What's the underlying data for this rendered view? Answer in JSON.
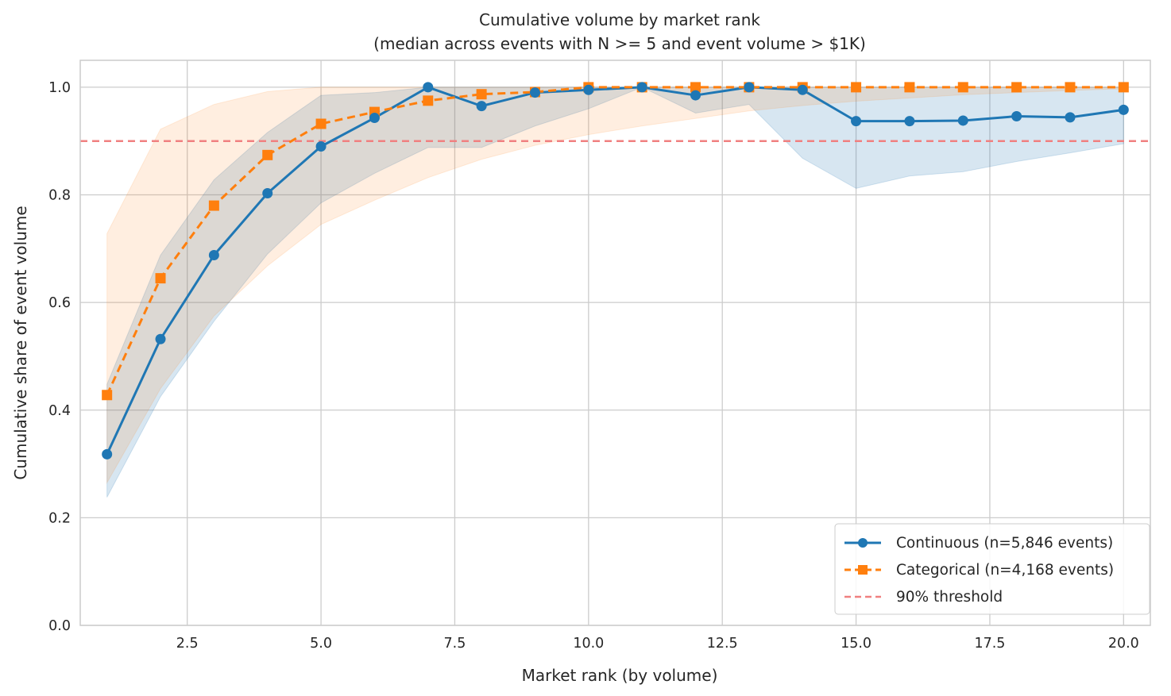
{
  "chart_data": {
    "type": "line",
    "title": "Cumulative volume by market rank",
    "subtitle": "(median across events with N >= 5 and event volume > $1K)",
    "xlabel": "Market rank (by volume)",
    "ylabel": "Cumulative share of event volume",
    "xlim": [
      0.5,
      20.5
    ],
    "ylim": [
      0.0,
      1.05
    ],
    "xticks": [
      2.5,
      5.0,
      7.5,
      10.0,
      12.5,
      15.0,
      17.5,
      20.0
    ],
    "xtick_labels": [
      "2.5",
      "5.0",
      "7.5",
      "10.0",
      "12.5",
      "15.0",
      "17.5",
      "20.0"
    ],
    "yticks": [
      0.0,
      0.2,
      0.4,
      0.6,
      0.8,
      1.0
    ],
    "ytick_labels": [
      "0.0",
      "0.2",
      "0.4",
      "0.6",
      "0.8",
      "1.0"
    ],
    "grid": true,
    "legend_position": "lower-right",
    "x": [
      1,
      2,
      3,
      4,
      5,
      6,
      7,
      8,
      9,
      10,
      11,
      12,
      13,
      14,
      15,
      16,
      17,
      18,
      19,
      20
    ],
    "series": [
      {
        "name": "Continuous",
        "legend_label": "Continuous (n=5,846 events)",
        "color": "#1f77b4",
        "marker": "circle",
        "linestyle": "solid",
        "values": [
          0.318,
          0.532,
          0.688,
          0.803,
          0.89,
          0.943,
          1.0,
          0.965,
          0.99,
          0.995,
          1.0,
          0.985,
          1.0,
          0.995,
          0.937,
          0.937,
          0.938,
          0.946,
          0.944,
          0.958
        ],
        "band_lower": [
          0.238,
          0.425,
          0.565,
          0.69,
          0.785,
          0.84,
          0.888,
          0.888,
          0.928,
          0.96,
          1.0,
          0.952,
          0.968,
          0.868,
          0.812,
          0.835,
          0.843,
          0.862,
          0.878,
          0.895
        ],
        "band_upper": [
          0.448,
          0.688,
          0.828,
          0.916,
          0.985,
          0.99,
          1.0,
          1.0,
          1.0,
          1.0,
          1.0,
          1.0,
          1.0,
          1.0,
          1.0,
          1.0,
          1.0,
          1.0,
          1.0,
          1.0
        ]
      },
      {
        "name": "Categorical",
        "legend_label": "Categorical (n=4,168 events)",
        "color": "#ff7f0e",
        "marker": "square",
        "linestyle": "dashed",
        "values": [
          0.428,
          0.645,
          0.78,
          0.874,
          0.932,
          0.954,
          0.975,
          0.987,
          0.991,
          1.0,
          1.0,
          1.0,
          1.0,
          1.0,
          1.0,
          1.0,
          1.0,
          1.0,
          1.0,
          1.0
        ],
        "band_lower": [
          0.265,
          0.44,
          0.575,
          0.668,
          0.745,
          0.79,
          0.832,
          0.866,
          0.892,
          0.912,
          0.928,
          0.942,
          0.956,
          0.966,
          0.974,
          0.98,
          0.986,
          0.99,
          0.994,
          0.997
        ],
        "band_upper": [
          0.728,
          0.922,
          0.968,
          0.992,
          1.0,
          1.0,
          1.0,
          1.0,
          1.0,
          1.0,
          1.0,
          1.0,
          1.0,
          1.0,
          1.0,
          1.0,
          1.0,
          1.0,
          1.0,
          1.0
        ]
      }
    ],
    "threshold": {
      "legend_label": "90% threshold",
      "value": 0.9,
      "color": "#f08080"
    }
  }
}
